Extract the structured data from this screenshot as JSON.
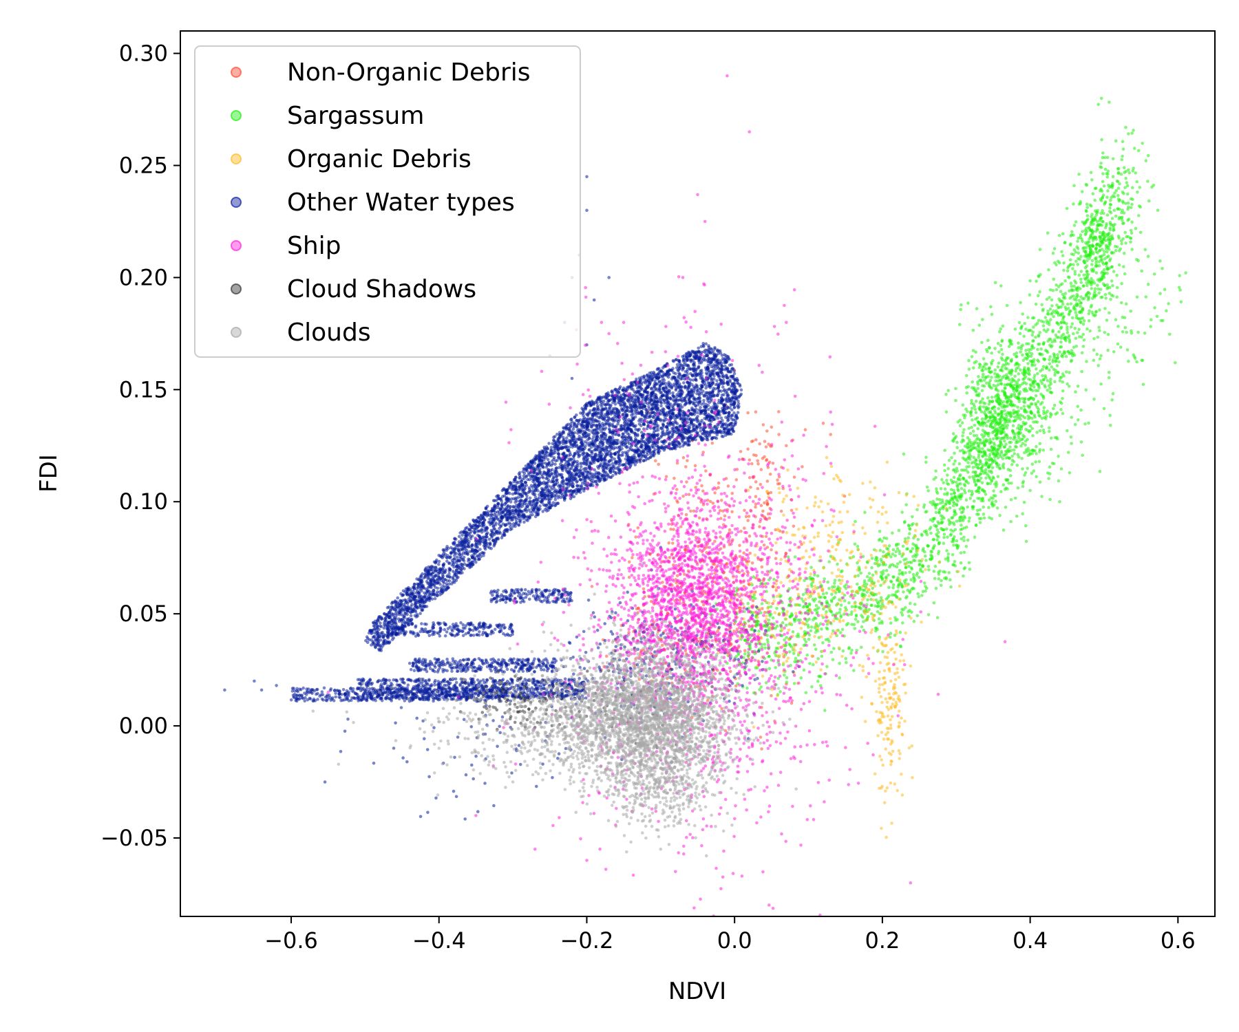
{
  "chart_data": {
    "type": "scatter",
    "title": "",
    "xlabel": "NDVI",
    "ylabel": "FDI",
    "xlim": [
      -0.75,
      0.65
    ],
    "ylim": [
      -0.085,
      0.31
    ],
    "xticks": [
      -0.6,
      -0.4,
      -0.2,
      0.0,
      0.2,
      0.4,
      0.6
    ],
    "xtick_labels": [
      "−0.6",
      "−0.4",
      "−0.2",
      "0.0",
      "0.2",
      "0.4",
      "0.6"
    ],
    "yticks": [
      -0.05,
      0.0,
      0.05,
      0.1,
      0.15,
      0.2,
      0.25,
      0.3
    ],
    "ytick_labels": [
      "−0.05",
      "0.00",
      "0.05",
      "0.10",
      "0.15",
      "0.20",
      "0.25",
      "0.30"
    ],
    "grid": false,
    "legend_position": "top-left",
    "series": [
      {
        "name": "Non-Organic Debris",
        "color": "#ff4c33",
        "opacity": 0.55,
        "clusters": [
          {
            "cx": -0.02,
            "cy": 0.07,
            "sx": 0.05,
            "sy": 0.03,
            "n": 380
          },
          {
            "cx": 0.04,
            "cy": 0.11,
            "sx": 0.02,
            "sy": 0.015,
            "n": 60
          },
          {
            "cx": -0.1,
            "cy": 0.04,
            "sx": 0.05,
            "sy": 0.012,
            "n": 90
          }
        ],
        "points": [
          [
            0.13,
            0.13
          ],
          [
            0.12,
            0.135
          ],
          [
            0.07,
            0.125
          ],
          [
            0.06,
            0.13
          ]
        ]
      },
      {
        "name": "Sargassum",
        "color": "#22ee11",
        "opacity": 0.55,
        "paths": [
          {
            "pts": [
              [
                0.0,
                0.037
              ],
              [
                0.1,
                0.046
              ],
              [
                0.2,
                0.062
              ],
              [
                0.28,
                0.085
              ],
              [
                0.33,
                0.115
              ],
              [
                0.37,
                0.145
              ],
              [
                0.43,
                0.17
              ],
              [
                0.48,
                0.205
              ],
              [
                0.53,
                0.25
              ]
            ],
            "spread_x": 0.02,
            "spread_y": 0.012,
            "n": 2400
          },
          {
            "pts": [
              [
                0.38,
                0.15
              ],
              [
                0.42,
                0.12
              ],
              [
                0.46,
                0.15
              ],
              [
                0.52,
                0.17
              ],
              [
                0.58,
                0.205
              ]
            ],
            "spread_x": 0.025,
            "spread_y": 0.015,
            "n": 180
          }
        ],
        "clusters": [
          {
            "cx": 0.36,
            "cy": 0.14,
            "sx": 0.03,
            "sy": 0.02,
            "n": 500
          },
          {
            "cx": 0.49,
            "cy": 0.215,
            "sx": 0.015,
            "sy": 0.01,
            "n": 150
          }
        ],
        "points": [
          [
            0.5,
            0.2
          ],
          [
            0.4,
            0.105
          ],
          [
            0.44,
            0.1
          ]
        ]
      },
      {
        "name": "Organic Debris",
        "color": "#ffbb22",
        "opacity": 0.55,
        "clusters": [
          {
            "cx": 0.14,
            "cy": 0.07,
            "sx": 0.06,
            "sy": 0.02,
            "n": 280
          },
          {
            "cx": 0.21,
            "cy": 0.01,
            "sx": 0.012,
            "sy": 0.02,
            "n": 160
          },
          {
            "cx": 0.05,
            "cy": 0.045,
            "sx": 0.04,
            "sy": 0.015,
            "n": 90
          }
        ],
        "points": []
      },
      {
        "name": "Other Water types",
        "color": "#0a1f9c",
        "opacity": 0.55,
        "polygons": [
          {
            "poly": [
              [
                -0.5,
                0.038
              ],
              [
                -0.48,
                0.033
              ],
              [
                -0.3,
                0.088
              ],
              [
                -0.1,
                0.122
              ],
              [
                0.0,
                0.13
              ],
              [
                0.01,
                0.15
              ],
              [
                -0.01,
                0.166
              ],
              [
                -0.04,
                0.171
              ],
              [
                -0.1,
                0.16
              ],
              [
                -0.2,
                0.144
              ],
              [
                -0.3,
                0.11
              ],
              [
                -0.42,
                0.07
              ],
              [
                -0.49,
                0.046
              ]
            ],
            "n": 5200
          }
        ],
        "bands": [
          {
            "x0": -0.51,
            "x1": -0.2,
            "y0": 0.012,
            "y1": 0.021,
            "n": 800
          },
          {
            "x0": -0.6,
            "x1": -0.3,
            "y0": 0.011,
            "y1": 0.017,
            "n": 380
          },
          {
            "x0": -0.44,
            "x1": -0.24,
            "y0": 0.024,
            "y1": 0.03,
            "n": 320
          },
          {
            "x0": -0.47,
            "x1": -0.3,
            "y0": 0.04,
            "y1": 0.046,
            "n": 230
          },
          {
            "x0": -0.33,
            "x1": -0.22,
            "y0": 0.055,
            "y1": 0.061,
            "n": 170
          }
        ],
        "clusters": [
          {
            "cx": -0.1,
            "cy": 0.03,
            "sx": 0.07,
            "sy": 0.015,
            "n": 320
          },
          {
            "cx": -0.35,
            "cy": -0.01,
            "sx": 0.08,
            "sy": 0.015,
            "n": 70
          }
        ],
        "points": [
          [
            -0.69,
            0.016
          ],
          [
            -0.65,
            0.02
          ],
          [
            -0.62,
            0.018
          ],
          [
            -0.64,
            0.016
          ],
          [
            -0.2,
            0.245
          ],
          [
            -0.2,
            0.23
          ],
          [
            -0.21,
            0.21
          ],
          [
            -0.22,
            0.2
          ],
          [
            -0.17,
            0.2
          ],
          [
            -0.23,
            0.18
          ],
          [
            -0.19,
            0.19
          ],
          [
            -0.25,
            0.165
          ],
          [
            -0.22,
            0.155
          ],
          [
            -0.2,
            0.17
          ]
        ]
      },
      {
        "name": "Ship",
        "color": "#ff22dd",
        "opacity": 0.55,
        "clusters": [
          {
            "cx": -0.06,
            "cy": 0.055,
            "sx": 0.05,
            "sy": 0.022,
            "n": 1500
          },
          {
            "cx": -0.04,
            "cy": 0.02,
            "sx": 0.1,
            "sy": 0.04,
            "n": 700
          },
          {
            "cx": -0.1,
            "cy": 0.12,
            "sx": 0.09,
            "sy": 0.04,
            "n": 160
          },
          {
            "cx": 0.03,
            "cy": 0.06,
            "sx": 0.06,
            "sy": 0.03,
            "n": 320
          }
        ],
        "points": [
          [
            -0.01,
            0.29
          ],
          [
            0.02,
            0.265
          ],
          [
            -0.05,
            0.237
          ],
          [
            -0.04,
            0.225
          ],
          [
            -0.07,
            0.2
          ],
          [
            -0.15,
            0.18
          ],
          [
            -0.18,
            0.18
          ],
          [
            -0.17,
            0.175
          ],
          [
            -0.27,
            -0.055
          ],
          [
            -0.2,
            -0.06
          ],
          [
            -0.08,
            -0.065
          ],
          [
            0.01,
            -0.067
          ],
          [
            -0.35,
            -0.04
          ],
          [
            0.07,
            0.18
          ],
          [
            0.13,
            0.14
          ],
          [
            -0.55,
            0.015
          ]
        ]
      },
      {
        "name": "Cloud Shadows",
        "color": "#333333",
        "opacity": 0.55,
        "clusters": [
          {
            "cx": -0.3,
            "cy": 0.011,
            "sx": 0.03,
            "sy": 0.005,
            "n": 90
          },
          {
            "cx": -0.18,
            "cy": 0.008,
            "sx": 0.05,
            "sy": 0.008,
            "n": 60
          }
        ],
        "points": []
      },
      {
        "name": "Clouds",
        "color": "#a8a8a8",
        "opacity": 0.55,
        "clusters": [
          {
            "cx": -0.12,
            "cy": 0.005,
            "sx": 0.06,
            "sy": 0.016,
            "n": 2600
          },
          {
            "cx": -0.22,
            "cy": 0.0,
            "sx": 0.1,
            "sy": 0.012,
            "n": 700
          },
          {
            "cx": -0.1,
            "cy": -0.025,
            "sx": 0.04,
            "sy": 0.012,
            "n": 350
          }
        ],
        "points": [
          [
            -0.1,
            -0.055
          ],
          [
            -0.12,
            -0.05
          ],
          [
            -0.4,
            -0.01
          ],
          [
            -0.3,
            -0.025
          ]
        ]
      }
    ]
  }
}
